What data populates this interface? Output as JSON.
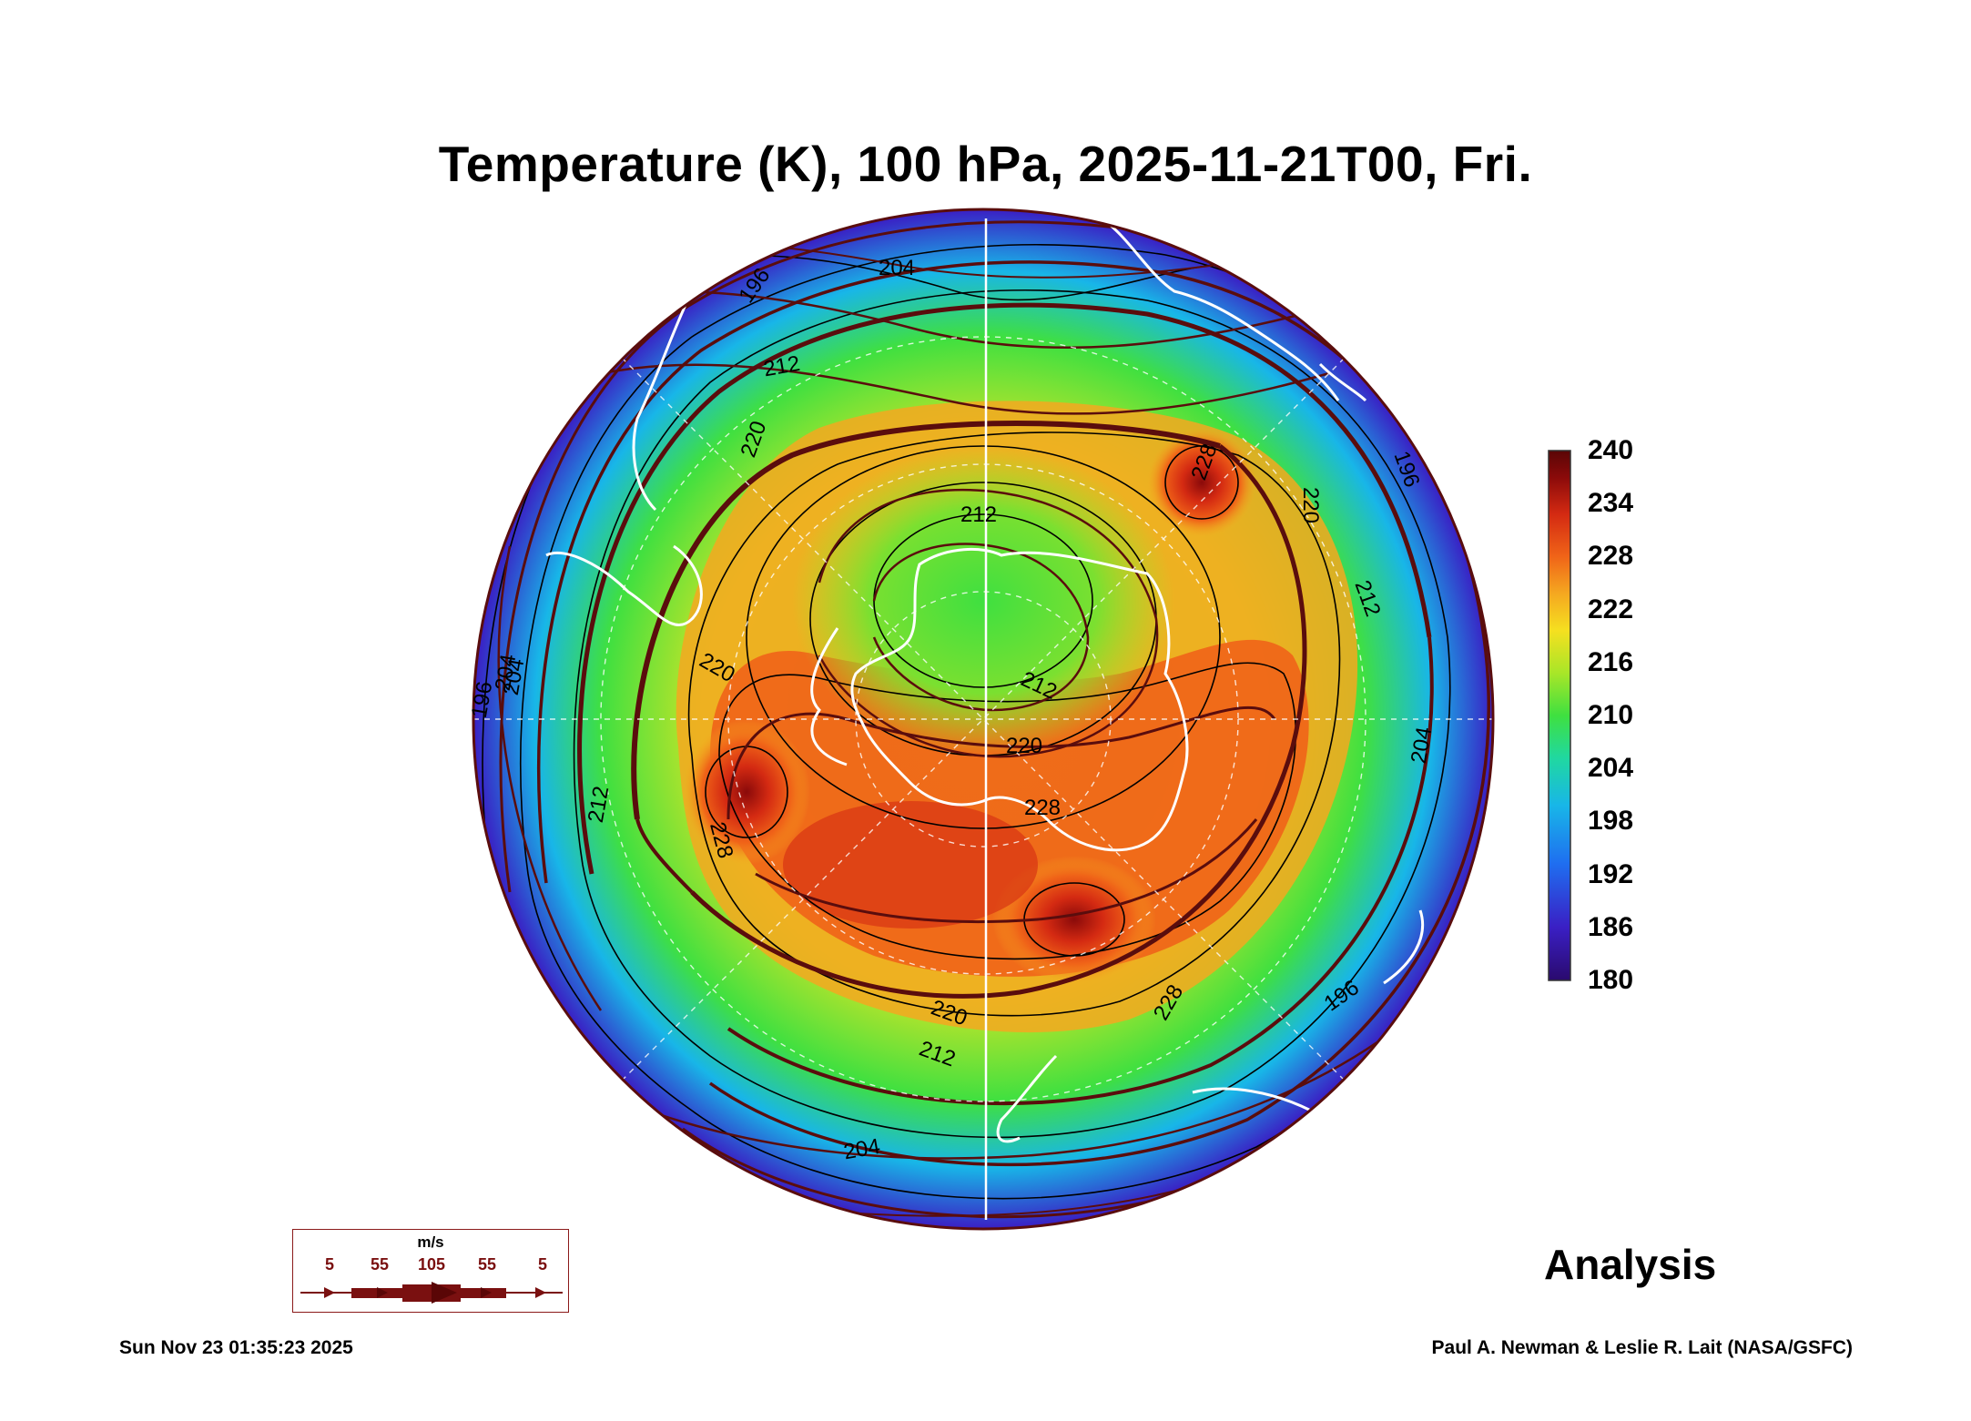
{
  "title": "Temperature (K), 100 hPa, 2025-11-21T00, Fri.",
  "colorbar": {
    "labels": [
      "240",
      "234",
      "228",
      "222",
      "216",
      "210",
      "204",
      "198",
      "192",
      "186",
      "180"
    ],
    "min": 180,
    "max": 240,
    "colors": [
      "#2a0a6e",
      "#3a1fc4",
      "#1f6ef0",
      "#18b6e8",
      "#20d8a0",
      "#3fe040",
      "#a8e628",
      "#f5e020",
      "#f5a820",
      "#f06418",
      "#d42a12",
      "#8a0a0a",
      "#5a0606"
    ]
  },
  "contour_labels": [
    {
      "text": "196"
    },
    {
      "text": "204"
    },
    {
      "text": "212"
    },
    {
      "text": "220"
    },
    {
      "text": "228"
    },
    {
      "text": "220"
    },
    {
      "text": "212"
    },
    {
      "text": "196"
    },
    {
      "text": "204"
    },
    {
      "text": "212"
    },
    {
      "text": "220"
    },
    {
      "text": "212"
    },
    {
      "text": "220"
    },
    {
      "text": "228"
    },
    {
      "text": "228"
    },
    {
      "text": "220"
    },
    {
      "text": "212"
    },
    {
      "text": "204"
    },
    {
      "text": "196"
    },
    {
      "text": "228"
    },
    {
      "text": "204"
    },
    {
      "text": "196"
    },
    {
      "text": "212"
    },
    {
      "text": "204"
    }
  ],
  "wind_key": {
    "unit": "m/s",
    "speeds": [
      "5",
      "55",
      "105",
      "55",
      "5"
    ]
  },
  "analysis_label": "Analysis",
  "timestamp": "Sun Nov 23 01:35:23 2025",
  "credit": "Paul A. Newman & Leslie R. Lait (NASA/GSFC)",
  "colors": {
    "streamline": "#5a0d0d",
    "contour": "#000000",
    "coastline": "#ffffff"
  }
}
